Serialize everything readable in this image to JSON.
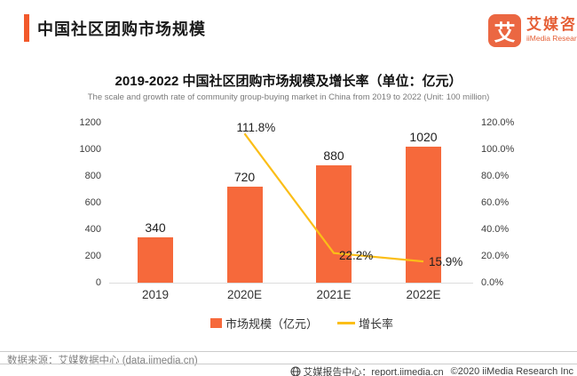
{
  "page": {
    "title": "中国社区团购市场规模"
  },
  "logo": {
    "mark": "艾",
    "name_cn": "艾媒咨询",
    "name_en": "iiMedia Research"
  },
  "chart": {
    "title": "2019-2022 中国社区团购市场规模及增长率（单位：亿元）",
    "subtitle": "The scale and growth rate of community group-buying market in China from 2019 to 2022 (Unit: 100 million)",
    "left_axis": [
      "1200",
      "1000",
      "800",
      "600",
      "400",
      "200",
      "0"
    ],
    "right_axis": [
      "120.0%",
      "100.0%",
      "80.0%",
      "60.0%",
      "40.0%",
      "20.0%",
      "0.0%"
    ],
    "bar_labels": [
      "340",
      "720",
      "880",
      "1020"
    ],
    "line_labels": [
      "111.8%",
      "22.2%",
      "15.9%"
    ],
    "legend": [
      {
        "label": "市场规模（亿元）"
      },
      {
        "label": "增长率"
      }
    ]
  },
  "chart_data": {
    "type": "bar",
    "title": "2019-2022 中国社区团购市场规模及增长率（单位：亿元）",
    "categories": [
      "2019",
      "2020E",
      "2021E",
      "2022E"
    ],
    "series": [
      {
        "name": "市场规模（亿元）",
        "kind": "bar",
        "axis": "left",
        "values": [
          340,
          720,
          880,
          1020
        ]
      },
      {
        "name": "增长率",
        "kind": "line",
        "axis": "right",
        "unit": "%",
        "values": [
          null,
          111.8,
          22.2,
          15.9
        ]
      }
    ],
    "left_ylim": [
      0,
      1200
    ],
    "right_ylim": [
      0,
      120
    ],
    "grid": false,
    "legend_position": "bottom"
  },
  "footer": {
    "source": "数据来源：艾媒数据中心 (data.iimedia.cn)",
    "report_center": "艾媒报告中心：report.iimedia.cn",
    "copyright": "©2020  iiMedia Research Inc"
  },
  "colors": {
    "accent": "#F2592B",
    "bar": "#F6693B",
    "line": "#FBBE18",
    "logo": "#EB6742"
  }
}
